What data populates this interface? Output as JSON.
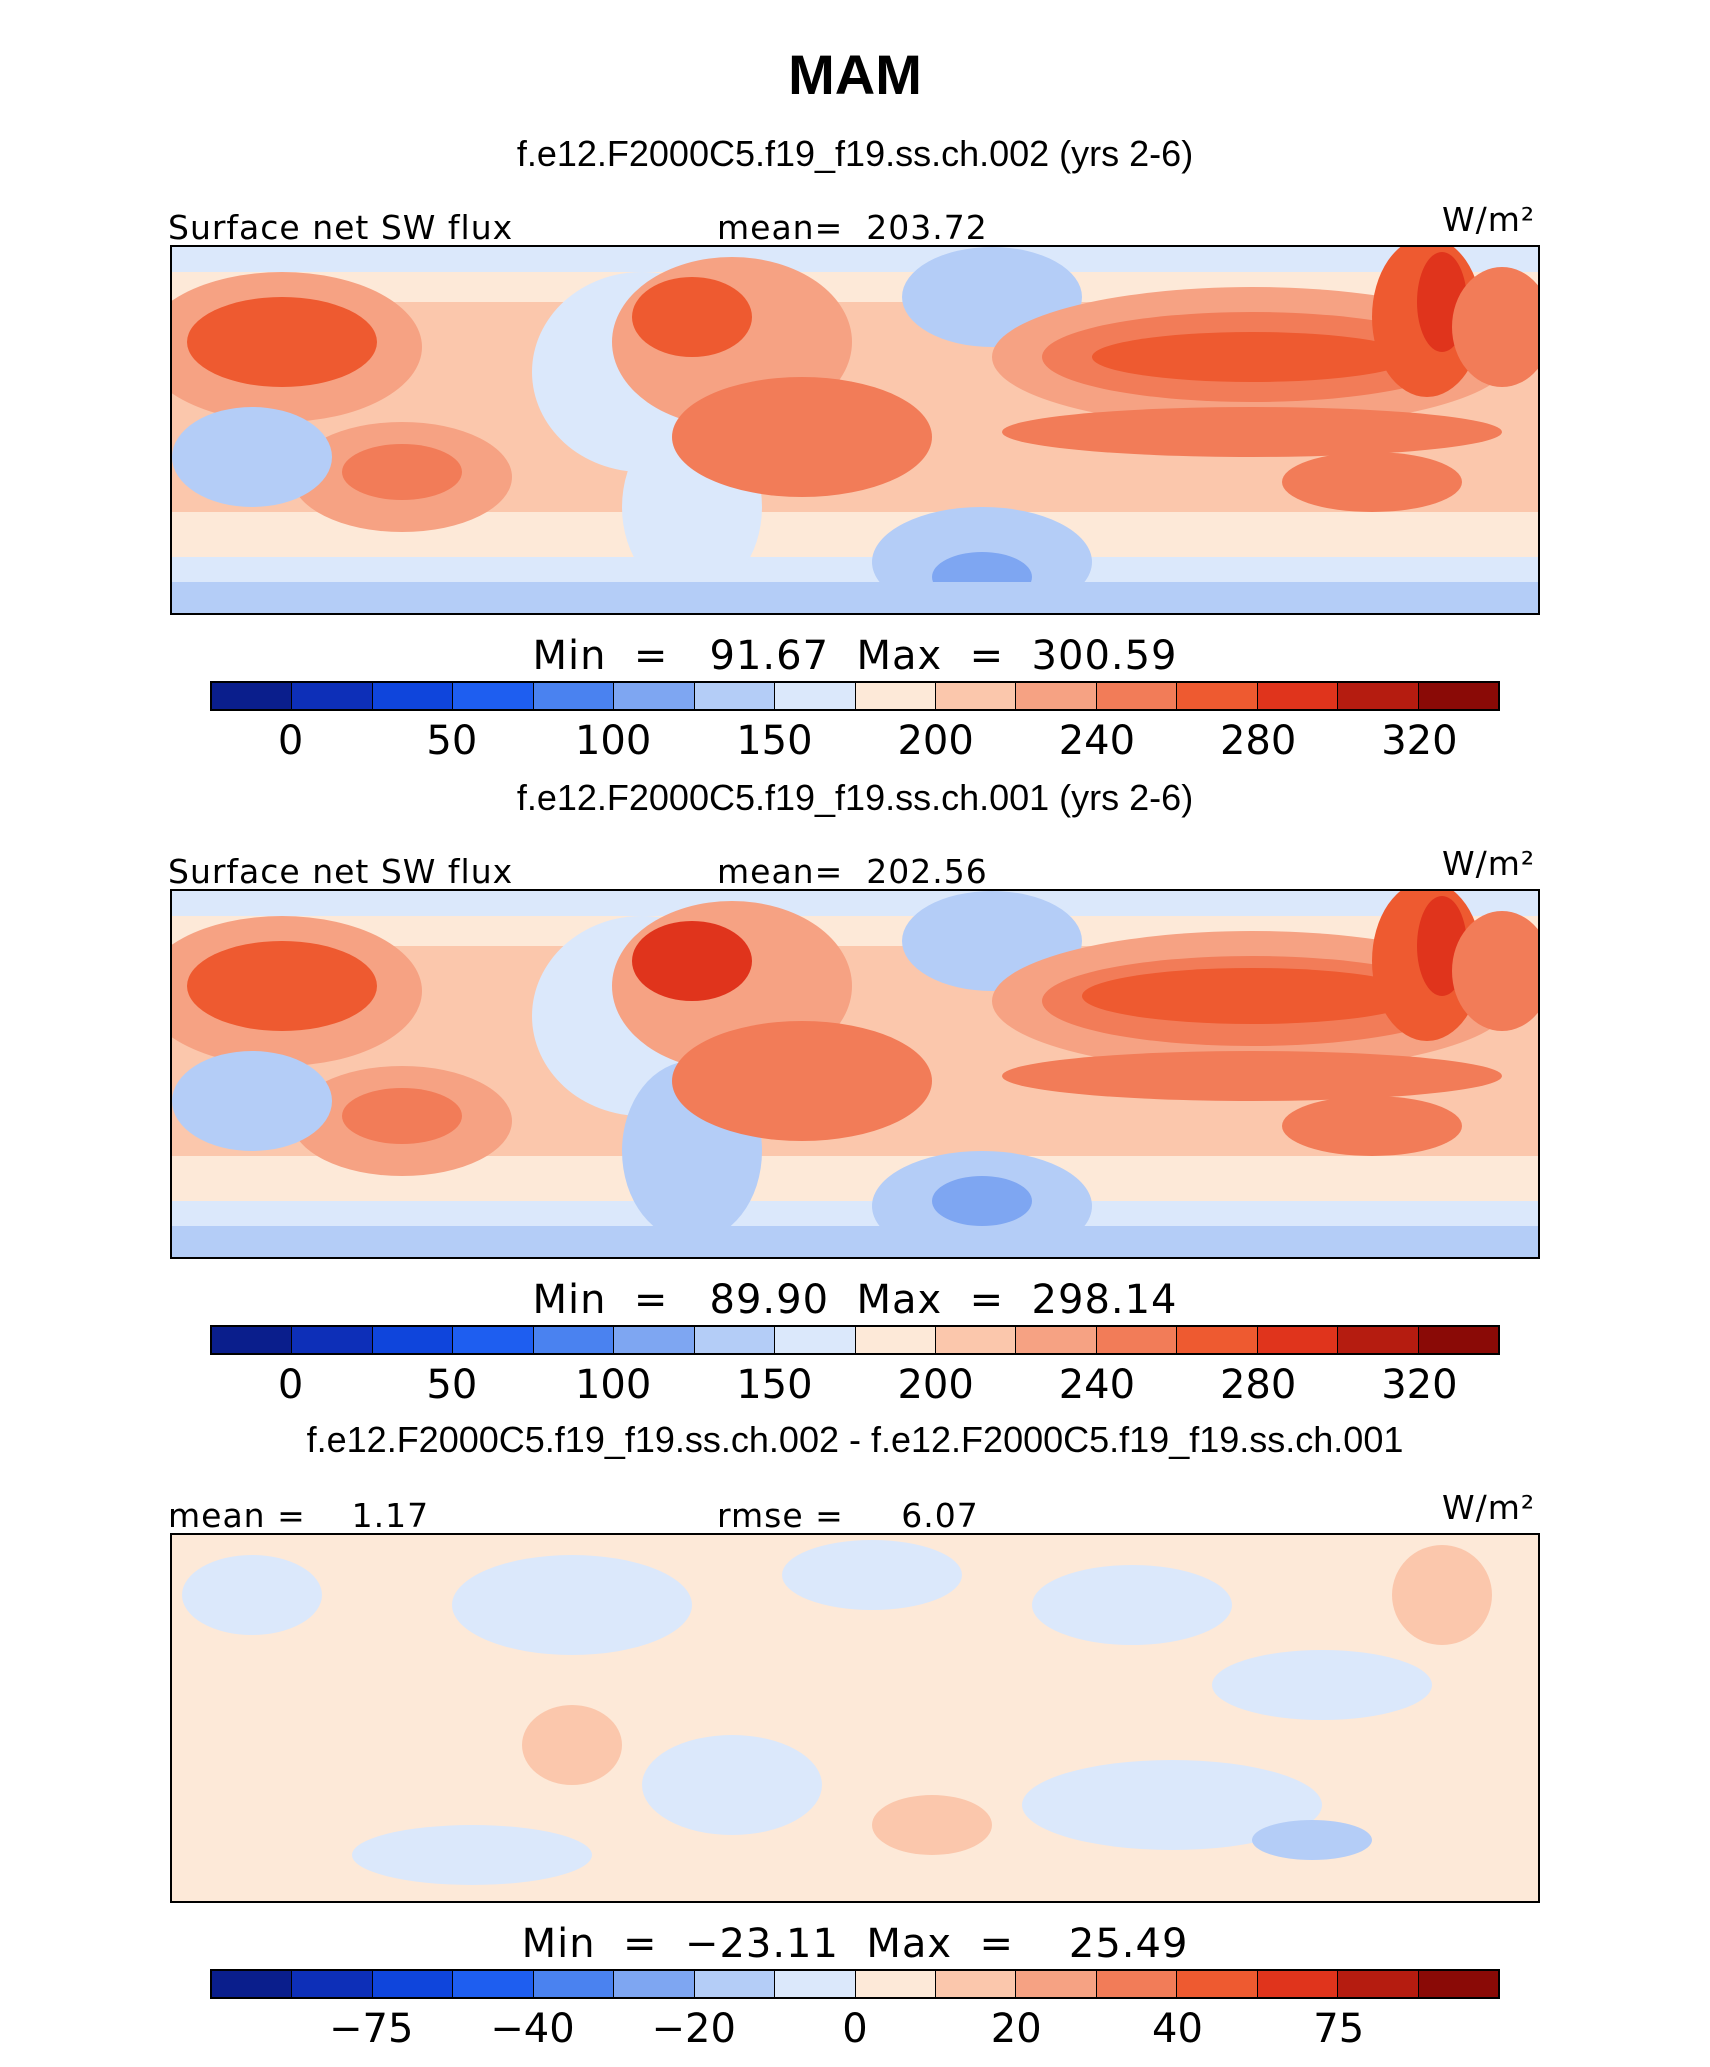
{
  "title": "MAM",
  "units_label": "W/m²",
  "chart_data": [
    {
      "type": "heatmap",
      "title": "f.e12.F2000C5.f19_f19.ss.ch.002 (yrs 2-6)",
      "left_label": "Surface net SW flux",
      "center_label": "mean=  203.72",
      "stats": "Min  =   91.67  Max  =  300.59",
      "min": 91.67,
      "max": 300.59,
      "mean": 203.72,
      "colorbar_ticks": [
        "0",
        "50",
        "100",
        "150",
        "200",
        "240",
        "280",
        "320"
      ],
      "colors": [
        "#0a1e8c",
        "#0d2fb8",
        "#0f45dc",
        "#1e5ef0",
        "#4a82f0",
        "#7ea6f2",
        "#b4cdf7",
        "#dbe8fb",
        "#fde9d8",
        "#fbc7ac",
        "#f6a283",
        "#f27c58",
        "#ee5a30",
        "#e0341c",
        "#b51c10",
        "#8a0a06"
      ]
    },
    {
      "type": "heatmap",
      "title": "f.e12.F2000C5.f19_f19.ss.ch.001 (yrs 2-6)",
      "left_label": "Surface net SW flux",
      "center_label": "mean=  202.56",
      "stats": "Min  =   89.90  Max  =  298.14",
      "min": 89.9,
      "max": 298.14,
      "mean": 202.56,
      "colorbar_ticks": [
        "0",
        "50",
        "100",
        "150",
        "200",
        "240",
        "280",
        "320"
      ],
      "colors": [
        "#0a1e8c",
        "#0d2fb8",
        "#0f45dc",
        "#1e5ef0",
        "#4a82f0",
        "#7ea6f2",
        "#b4cdf7",
        "#dbe8fb",
        "#fde9d8",
        "#fbc7ac",
        "#f6a283",
        "#f27c58",
        "#ee5a30",
        "#e0341c",
        "#b51c10",
        "#8a0a06"
      ]
    },
    {
      "type": "heatmap",
      "title": "f.e12.F2000C5.f19_f19.ss.ch.002 - f.e12.F2000C5.f19_f19.ss.ch.001",
      "left_label": "mean =    1.17",
      "center_label": "rmse =     6.07",
      "stats": "Min  =  −23.11  Max  =    25.49",
      "min": -23.11,
      "max": 25.49,
      "mean": 1.17,
      "rmse": 6.07,
      "colorbar_ticks": [
        "−75",
        "−40",
        "−20",
        "0",
        "20",
        "40",
        "75"
      ],
      "colors": [
        "#0a1e8c",
        "#0d2fb8",
        "#0f45dc",
        "#1e5ef0",
        "#4a82f0",
        "#7ea6f2",
        "#b4cdf7",
        "#dbe8fb",
        "#fde9d8",
        "#fbc7ac",
        "#f6a283",
        "#f27c58",
        "#ee5a30",
        "#e0341c",
        "#b51c10",
        "#8a0a06"
      ]
    }
  ]
}
